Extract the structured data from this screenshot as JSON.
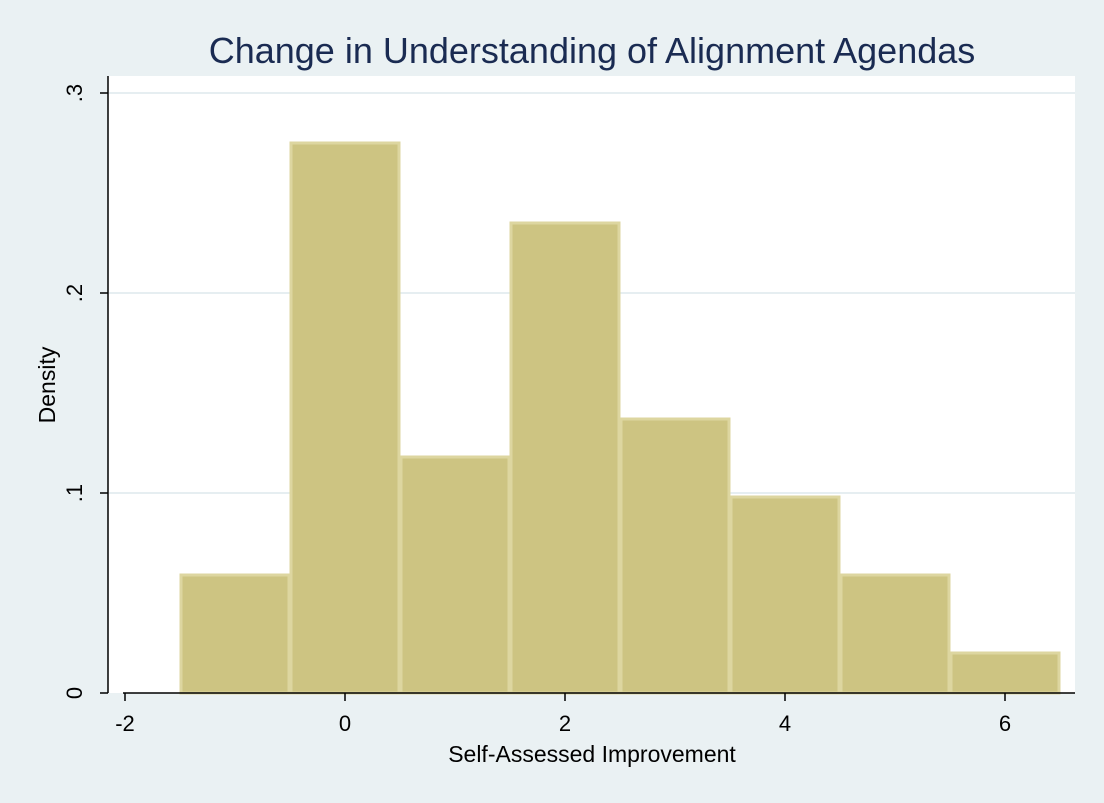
{
  "colors": {
    "background": "#eaf1f3",
    "plot_background": "#ffffff",
    "bar_fill": "#cdc482",
    "bar_edge": "#ddd6a0",
    "gridline": "#e6eef1",
    "title": "#1a2b52",
    "axis": "#000000"
  },
  "chart_data": {
    "type": "bar",
    "subtype": "histogram",
    "title": "Change in Understanding of Alignment Agendas",
    "xlabel": "Self-Assessed Improvement",
    "ylabel": "Density",
    "xlim": [
      -2.2,
      6.7
    ],
    "ylim": [
      0,
      0.3
    ],
    "x_ticks": [
      -2,
      0,
      2,
      4,
      6
    ],
    "x_tick_labels": [
      "-2",
      "0",
      "2",
      "4",
      "6"
    ],
    "y_ticks": [
      0,
      0.1,
      0.2,
      0.3
    ],
    "y_tick_labels": [
      "0",
      ".1",
      ".2",
      ".3"
    ],
    "grid": true,
    "bins": [
      {
        "x0": -1.5,
        "x1": -0.5,
        "value": 0.059
      },
      {
        "x0": -0.5,
        "x1": 0.5,
        "value": 0.275
      },
      {
        "x0": 0.5,
        "x1": 1.5,
        "value": 0.118
      },
      {
        "x0": 1.5,
        "x1": 2.5,
        "value": 0.235
      },
      {
        "x0": 2.5,
        "x1": 3.5,
        "value": 0.137
      },
      {
        "x0": 3.5,
        "x1": 4.5,
        "value": 0.098
      },
      {
        "x0": 4.5,
        "x1": 5.5,
        "value": 0.059
      },
      {
        "x0": 5.5,
        "x1": 6.5,
        "value": 0.02
      }
    ]
  }
}
